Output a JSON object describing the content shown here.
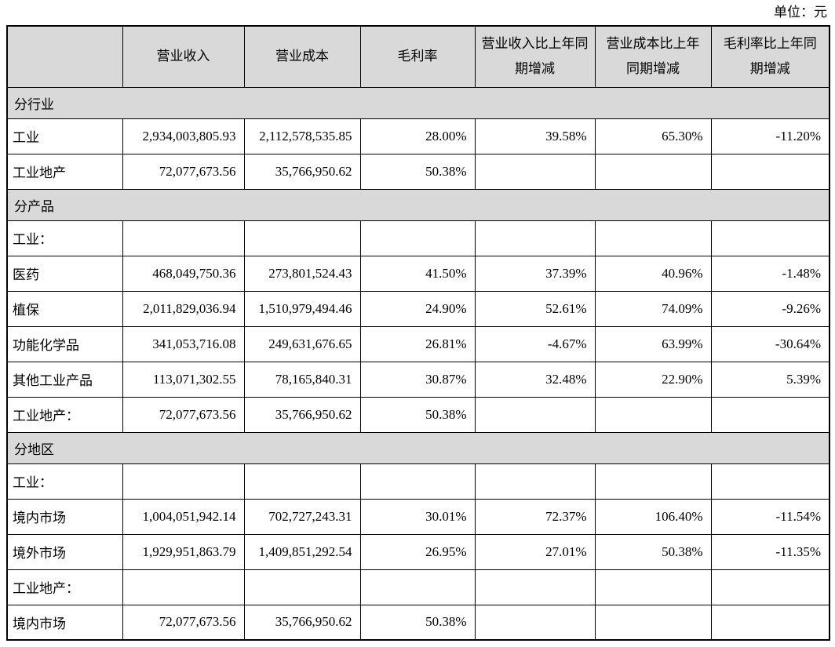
{
  "unit_label": "单位：元",
  "table": {
    "headers": [
      "",
      "营业收入",
      "营业成本",
      "毛利率",
      "营业收入比上年同期增减",
      "营业成本比上年同期增减",
      "毛利率比上年同期增减"
    ],
    "rows": [
      {
        "type": "section",
        "label": "分行业"
      },
      {
        "type": "data",
        "cells": [
          "工业",
          "2,934,003,805.93",
          "2,112,578,535.85",
          "28.00%",
          "39.58%",
          "65.30%",
          "-11.20%"
        ]
      },
      {
        "type": "data",
        "cells": [
          "工业地产",
          "72,077,673.56",
          "35,766,950.62",
          "50.38%",
          "",
          "",
          ""
        ]
      },
      {
        "type": "section",
        "label": "分产品"
      },
      {
        "type": "data",
        "cells": [
          "工业：",
          "",
          "",
          "",
          "",
          "",
          ""
        ]
      },
      {
        "type": "data",
        "cells": [
          "医药",
          "468,049,750.36",
          "273,801,524.43",
          "41.50%",
          "37.39%",
          "40.96%",
          "-1.48%"
        ]
      },
      {
        "type": "data",
        "cells": [
          "植保",
          "2,011,829,036.94",
          "1,510,979,494.46",
          "24.90%",
          "52.61%",
          "74.09%",
          "-9.26%"
        ]
      },
      {
        "type": "data",
        "cells": [
          "功能化学品",
          "341,053,716.08",
          "249,631,676.65",
          "26.81%",
          "-4.67%",
          "63.99%",
          "-30.64%"
        ]
      },
      {
        "type": "data",
        "cells": [
          "其他工业产品",
          "113,071,302.55",
          "78,165,840.31",
          "30.87%",
          "32.48%",
          "22.90%",
          "5.39%"
        ]
      },
      {
        "type": "data",
        "cells": [
          "工业地产：",
          "72,077,673.56",
          "35,766,950.62",
          "50.38%",
          "",
          "",
          ""
        ]
      },
      {
        "type": "section",
        "label": "分地区"
      },
      {
        "type": "data",
        "cells": [
          "工业：",
          "",
          "",
          "",
          "",
          "",
          ""
        ]
      },
      {
        "type": "data",
        "cells": [
          "境内市场",
          "1,004,051,942.14",
          "702,727,243.31",
          "30.01%",
          "72.37%",
          "106.40%",
          "-11.54%"
        ]
      },
      {
        "type": "data",
        "cells": [
          "境外市场",
          "1,929,951,863.79",
          "1,409,851,292.54",
          "26.95%",
          "27.01%",
          "50.38%",
          "-11.35%"
        ]
      },
      {
        "type": "data",
        "cells": [
          "工业地产：",
          "",
          "",
          "",
          "",
          "",
          ""
        ]
      },
      {
        "type": "data",
        "cells": [
          "境内市场",
          "72,077,673.56",
          "35,766,950.62",
          "50.38%",
          "",
          "",
          ""
        ]
      }
    ]
  }
}
